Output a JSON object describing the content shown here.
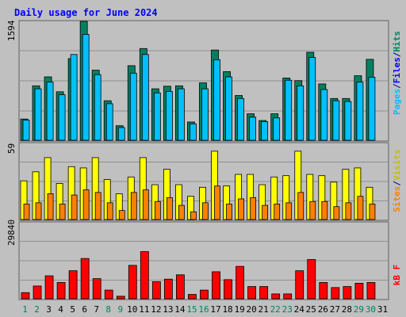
{
  "chart_data": [
    {
      "type": "bar",
      "title": "Daily usage for June 2024",
      "max_label": "1594",
      "categories": [
        "1",
        "2",
        "3",
        "4",
        "5",
        "6",
        "7",
        "8",
        "9",
        "10",
        "11",
        "12",
        "13",
        "14",
        "15",
        "16",
        "17",
        "18",
        "19",
        "20",
        "21",
        "22",
        "23",
        "24",
        "25",
        "26",
        "27",
        "28",
        "29",
        "30",
        "31"
      ],
      "weekend_days": [
        "1",
        "2",
        "8",
        "9",
        "15",
        "16",
        "22",
        "23",
        "29",
        "30"
      ],
      "series": [
        {
          "name": "Hits",
          "color": "#008060",
          "values": [
            285,
            730,
            850,
            650,
            1095,
            1594,
            940,
            530,
            195,
            1000,
            1230,
            690,
            725,
            730,
            245,
            770,
            1210,
            920,
            600,
            355,
            265,
            355,
            835,
            800,
            1180,
            755,
            560,
            560,
            865,
            1085,
            0
          ]
        },
        {
          "name": "Files",
          "color": "#00c0ff",
          "values": [
            270,
            690,
            780,
            610,
            1150,
            1420,
            880,
            490,
            170,
            900,
            1150,
            635,
            655,
            690,
            220,
            690,
            1080,
            850,
            560,
            310,
            250,
            300,
            805,
            730,
            1110,
            680,
            530,
            520,
            780,
            845,
            0
          ]
        },
        {
          "name": "Pages",
          "color": "#0000ff",
          "values": [
            0,
            0,
            0,
            0,
            0,
            0,
            0,
            0,
            0,
            0,
            0,
            0,
            0,
            0,
            0,
            0,
            0,
            0,
            0,
            0,
            0,
            0,
            0,
            0,
            0,
            0,
            0,
            0,
            0,
            0,
            0
          ]
        }
      ],
      "ylabel_parts": [
        "Pages",
        "/",
        "Files",
        "/",
        "Hits"
      ],
      "ylabel_colors": [
        "#00c0ff",
        "#000080",
        "#0000ff",
        "#000080",
        "#008060"
      ]
    },
    {
      "type": "bar",
      "max_label": "59",
      "series": [
        {
          "name": "Visits",
          "color": "#ffff00",
          "values": [
            30,
            37,
            48,
            28,
            41,
            40,
            48,
            31,
            20,
            33,
            48,
            27,
            39,
            27,
            18,
            25,
            53,
            26,
            35,
            35,
            27,
            33,
            34,
            53,
            35,
            34,
            29,
            39,
            40,
            25,
            0
          ]
        },
        {
          "name": "Sites",
          "color": "#ff8000",
          "values": [
            12,
            13,
            20,
            12,
            19,
            23,
            21,
            13,
            7,
            21,
            23,
            14,
            17,
            11,
            6,
            13,
            26,
            12,
            16,
            17,
            11,
            12,
            13,
            21,
            14,
            14,
            10,
            13,
            18,
            12,
            0
          ]
        }
      ],
      "ylabel_parts": [
        "Sites",
        "/",
        "Visits"
      ],
      "ylabel_colors": [
        "#ff8000",
        "#000080",
        "#c0c000"
      ]
    },
    {
      "type": "bar",
      "max_label": "29840",
      "series": [
        {
          "name": "kB F",
          "color": "#ff0000",
          "values": [
            2400,
            5000,
            9000,
            6400,
            11000,
            15800,
            7900,
            3400,
            1000,
            13100,
            18500,
            6700,
            7700,
            9400,
            1700,
            3400,
            10600,
            7500,
            12700,
            4800,
            4800,
            1900,
            1900,
            11000,
            15400,
            6400,
            4400,
            4800,
            6100,
            6400,
            0
          ]
        }
      ],
      "ylabel_parts": [
        "kB F"
      ],
      "ylabel_colors": [
        "#ff0000"
      ]
    }
  ]
}
